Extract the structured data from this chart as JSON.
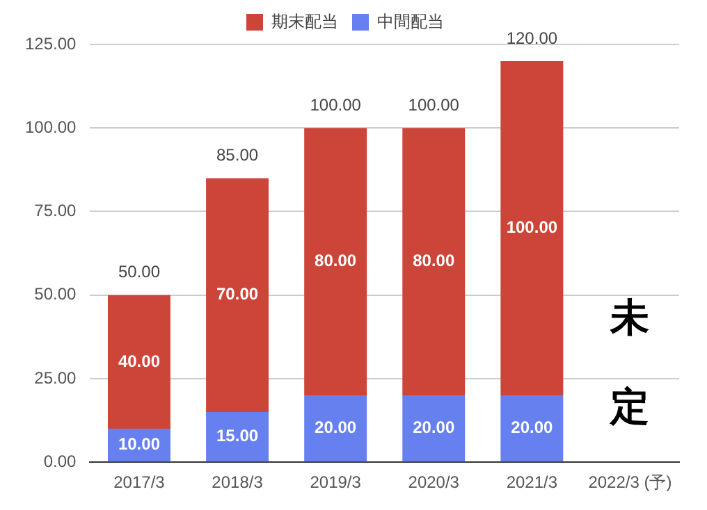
{
  "chart_data": {
    "type": "bar",
    "stacked": true,
    "categories": [
      "2017/3",
      "2018/3",
      "2019/3",
      "2020/3",
      "2021/3",
      "2022/3 (予)"
    ],
    "series": [
      {
        "name": "中間配当",
        "color": "#6780f0",
        "values": [
          10,
          15,
          20,
          20,
          20,
          null
        ],
        "value_labels": [
          "10.00",
          "15.00",
          "20.00",
          "20.00",
          "20.00",
          null
        ]
      },
      {
        "name": "期末配当",
        "color": "#cc4538",
        "values": [
          40,
          70,
          80,
          80,
          100,
          null
        ],
        "value_labels": [
          "40.00",
          "70.00",
          "80.00",
          "80.00",
          "100.00",
          null
        ]
      }
    ],
    "totals": [
      "50.00",
      "85.00",
      "100.00",
      "100.00",
      "120.00",
      null
    ],
    "ylim": [
      0,
      125
    ],
    "yticks": [
      {
        "value": 0,
        "label": "0.00"
      },
      {
        "value": 25,
        "label": "25.00"
      },
      {
        "value": 50,
        "label": "50.00"
      },
      {
        "value": 75,
        "label": "75.00"
      },
      {
        "value": 100,
        "label": "100.00"
      },
      {
        "value": 125,
        "label": "125.00"
      }
    ],
    "grid": "y",
    "legend": "top",
    "annotations": [
      "未定"
    ]
  }
}
